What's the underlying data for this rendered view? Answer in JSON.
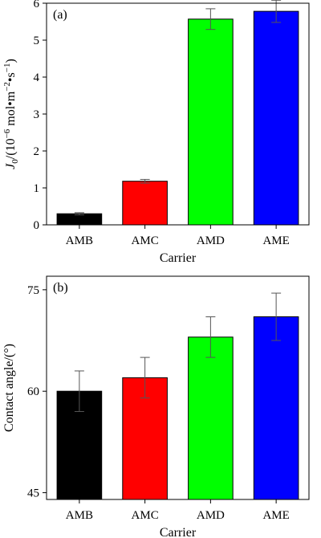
{
  "chart_data": [
    {
      "type": "bar",
      "panel_label": "(a)",
      "categories": [
        "AMB",
        "AMC",
        "AMD",
        "AME"
      ],
      "values": [
        0.3,
        1.18,
        5.57,
        5.78
      ],
      "errors": [
        0.03,
        0.05,
        0.28,
        0.3
      ],
      "colors": [
        "#000000",
        "#ff0000",
        "#00ff00",
        "#0000ff"
      ],
      "xlabel": "Carrier",
      "ylabel": {
        "symbol": "J",
        "subscript": "0",
        "rest_open": "/(10",
        "exp1": "−6",
        "mid1": " mol•m",
        "exp2": "−2",
        "mid2": "•s",
        "exp3": "−1",
        "rest_close": ")"
      },
      "ylim": [
        0,
        6
      ],
      "yticks": [
        0,
        1,
        2,
        3,
        4,
        5,
        6
      ],
      "grid": false
    },
    {
      "type": "bar",
      "panel_label": "(b)",
      "categories": [
        "AMB",
        "AMC",
        "AMD",
        "AME"
      ],
      "values": [
        60.0,
        62.0,
        68.0,
        71.0
      ],
      "errors": [
        3.0,
        3.0,
        3.0,
        3.5
      ],
      "colors": [
        "#000000",
        "#ff0000",
        "#00ff00",
        "#0000ff"
      ],
      "xlabel": "Carrier",
      "ylabel": {
        "text": "Contact angle/(°)"
      },
      "ylim": [
        44,
        77
      ],
      "yticks": [
        45,
        60,
        75
      ],
      "grid": false
    }
  ]
}
